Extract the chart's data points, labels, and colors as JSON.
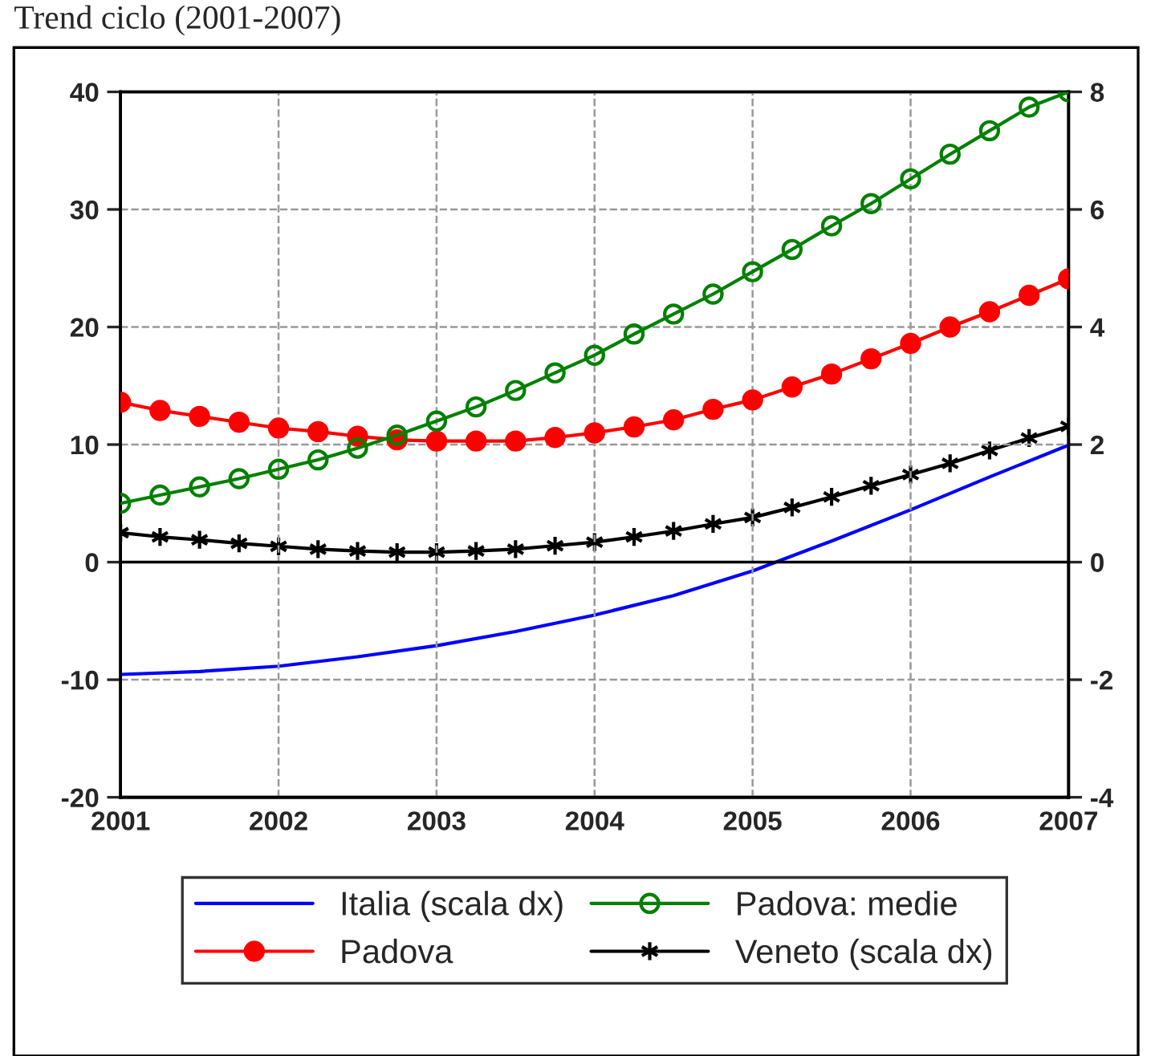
{
  "chart_data": {
    "type": "line",
    "title": "Trend ciclo (2001-2007)",
    "xlim": [
      2001,
      2007
    ],
    "xticks": [
      2001,
      2002,
      2003,
      2004,
      2005,
      2006,
      2007
    ],
    "ylim": [
      -20,
      40
    ],
    "yticks": [
      -20,
      -10,
      0,
      10,
      20,
      30,
      40
    ],
    "y2lim": [
      -4,
      8
    ],
    "y2ticks": [
      -4,
      -2,
      0,
      2,
      4,
      6,
      8
    ],
    "grid": true,
    "legend": "bottom",
    "ref_lines": [
      {
        "axis": "y",
        "value": 0,
        "color": "#000000",
        "line_style": "solid"
      }
    ],
    "series": [
      {
        "name": "Italia (scala dx)",
        "color": "#0000ff",
        "axis": "y2",
        "marker": "none",
        "x": [
          2001,
          2001.5,
          2002,
          2002.5,
          2003,
          2003.5,
          2004,
          2004.5,
          2005,
          2005.5,
          2006,
          2006.5,
          2007
        ],
        "values": [
          -1.91,
          -1.86,
          -1.77,
          -1.61,
          -1.42,
          -1.18,
          -0.9,
          -0.57,
          -0.15,
          0.36,
          0.89,
          1.45,
          1.99
        ]
      },
      {
        "name": "Padova: medie",
        "color": "#008000",
        "marker": "circle",
        "x": [
          2001,
          2001.25,
          2001.5,
          2001.75,
          2002,
          2002.25,
          2002.5,
          2002.75,
          2003,
          2003.25,
          2003.5,
          2003.75,
          2004,
          2004.25,
          2004.5,
          2004.75,
          2005,
          2005.25,
          2005.5,
          2005.75,
          2006,
          2006.25,
          2006.5,
          2006.75,
          2007
        ],
        "values": [
          5.0,
          5.7,
          6.4,
          7.1,
          7.9,
          8.7,
          9.7,
          10.8,
          12.0,
          13.2,
          14.6,
          16.1,
          17.6,
          19.4,
          21.1,
          22.8,
          24.7,
          26.6,
          28.6,
          30.5,
          32.6,
          34.7,
          36.7,
          38.7,
          40.0
        ]
      },
      {
        "name": "Padova",
        "color": "#ff0000",
        "marker": "circle",
        "x": [
          2001,
          2001.25,
          2001.5,
          2001.75,
          2002,
          2002.25,
          2002.5,
          2002.75,
          2003,
          2003.25,
          2003.5,
          2003.75,
          2004,
          2004.25,
          2004.5,
          2004.75,
          2005,
          2005.25,
          2005.5,
          2005.75,
          2006,
          2006.25,
          2006.5,
          2006.75,
          2007
        ],
        "values": [
          13.6,
          12.9,
          12.4,
          11.9,
          11.4,
          11.1,
          10.7,
          10.4,
          10.3,
          10.3,
          10.3,
          10.6,
          11.0,
          11.5,
          12.1,
          13.0,
          13.8,
          14.9,
          16.0,
          17.3,
          18.6,
          20.0,
          21.3,
          22.7,
          24.1
        ]
      },
      {
        "name": "Veneto (scala dx)",
        "color": "#000000",
        "axis": "y2",
        "marker": "cross",
        "x": [
          2001,
          2001.25,
          2001.5,
          2001.75,
          2002,
          2002.25,
          2002.5,
          2002.75,
          2003,
          2003.25,
          2003.5,
          2003.75,
          2004,
          2004.25,
          2004.5,
          2004.75,
          2005,
          2005.25,
          2005.5,
          2005.75,
          2006,
          2006.25,
          2006.5,
          2006.75,
          2007
        ],
        "values": [
          0.5,
          0.43,
          0.38,
          0.32,
          0.27,
          0.22,
          0.19,
          0.17,
          0.17,
          0.19,
          0.22,
          0.28,
          0.34,
          0.43,
          0.53,
          0.65,
          0.76,
          0.93,
          1.11,
          1.3,
          1.49,
          1.68,
          1.9,
          2.11,
          2.31
        ]
      }
    ]
  }
}
